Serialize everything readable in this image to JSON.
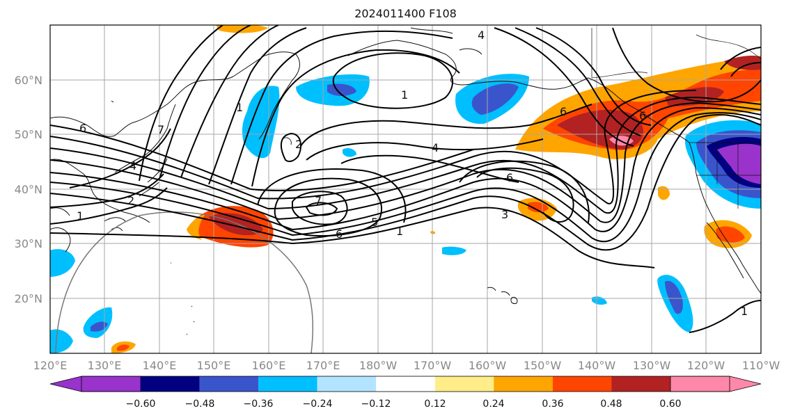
{
  "title": "2024011400 F108",
  "map": {
    "lon_ticks": [
      "120°E",
      "130°E",
      "140°E",
      "150°E",
      "160°E",
      "170°E",
      "180°W",
      "170°W",
      "160°W",
      "150°W",
      "140°W",
      "130°W",
      "120°W",
      "110°W"
    ],
    "lat_ticks": [
      "20°N",
      "30°N",
      "40°N",
      "50°N",
      "60°N"
    ],
    "contour_labels": [
      "1",
      "2",
      "4",
      "7",
      "6",
      "4",
      "1",
      "2",
      "1",
      "6",
      "4",
      "6",
      "7",
      "6",
      "5",
      "1",
      "3",
      "6",
      "1"
    ],
    "colorbar": {
      "ticks": [
        "−0.60",
        "−0.48",
        "−0.36",
        "−0.24",
        "−0.12",
        "0.12",
        "0.24",
        "0.36",
        "0.48",
        "0.60"
      ],
      "colors": [
        "#9933cc",
        "#000080",
        "#3a55cc",
        "#00bfff",
        "#b3e4ff",
        "#ffffff",
        "#ffed8a",
        "#ffa500",
        "#ff4500",
        "#b22222",
        "#ff88aa"
      ]
    }
  }
}
